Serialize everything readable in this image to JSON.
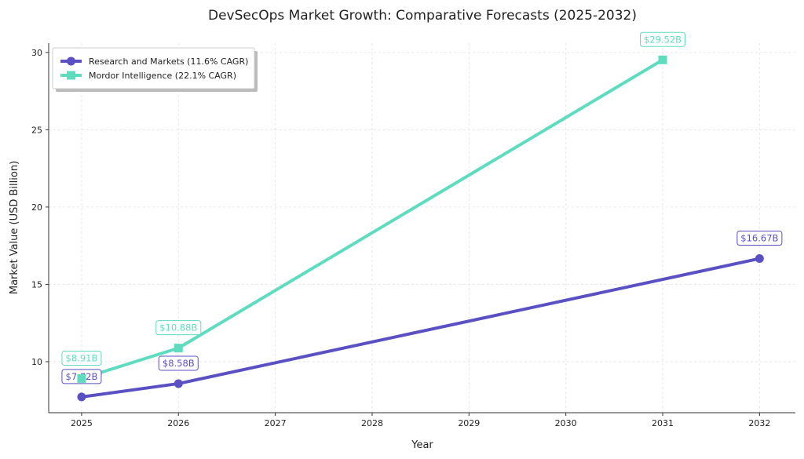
{
  "chart_data": {
    "type": "line",
    "title": "DevSecOps Market Growth: Comparative Forecasts (2025-2032)",
    "xlabel": "Year",
    "ylabel": "Market Value (USD Billion)",
    "xlim": [
      2024.66,
      2032.37
    ],
    "ylim": [
      6.7,
      30.6
    ],
    "xticks": [
      2025,
      2026,
      2027,
      2028,
      2029,
      2030,
      2031,
      2032
    ],
    "yticks": [
      10,
      15,
      20,
      25,
      30
    ],
    "grid": true,
    "legend_position": "top-left",
    "series": [
      {
        "name": "Research and Markets (11.6% CAGR)",
        "color": "#5b4fc4",
        "marker": "circle",
        "x": [
          2025,
          2026,
          2032
        ],
        "y": [
          7.72,
          8.58,
          16.67
        ],
        "labels": [
          "$7.72B",
          "$8.58B",
          "$16.67B"
        ]
      },
      {
        "name": "Mordor Intelligence (22.1% CAGR)",
        "color": "#5fdcbf",
        "marker": "square",
        "x": [
          2025,
          2026,
          2031
        ],
        "y": [
          8.91,
          10.88,
          29.52
        ],
        "labels": [
          "$8.91B",
          "$10.88B",
          "$29.52B"
        ]
      }
    ]
  }
}
